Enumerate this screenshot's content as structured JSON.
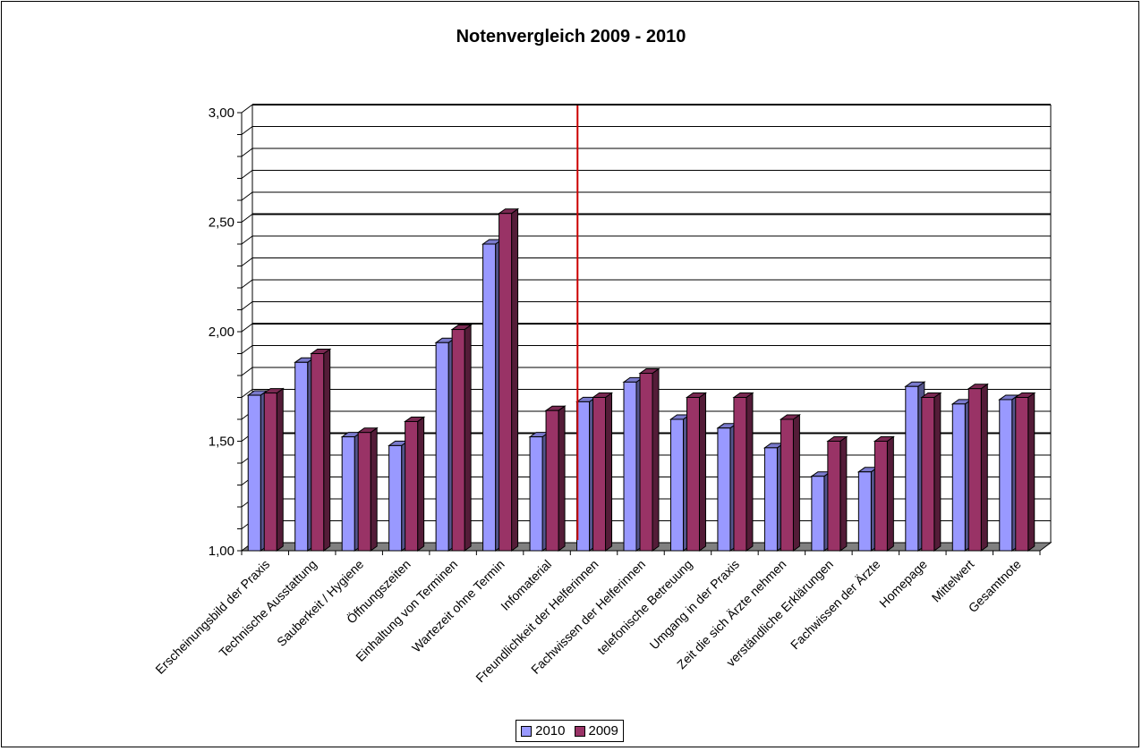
{
  "chart_data": {
    "type": "bar",
    "title": "Notenvergleich 2009 - 2010",
    "xlabel": "",
    "ylabel": "",
    "ylim": [
      1.0,
      3.0
    ],
    "yticks": [
      "1,00",
      "1,50",
      "2,00",
      "2,50",
      "3,00"
    ],
    "categories": [
      "Erscheinungsbild der Praxis",
      "Technische Ausstattung",
      "Sauberkeit / Hygiene",
      "Öffnungszeiten",
      "Einhaltung von Terminen",
      "Wartezeit ohne Termin",
      "Infomaterial",
      "Freundlichkeit der Helferinnen",
      "Fachwissen der Helferinnen",
      "telefonische Betreuung",
      "Umgang in der Praxis",
      "Zeit die sich Ärzte nehmen",
      "verständliche Erklärungen",
      "Fachwissen der Ärzte",
      "Homepage",
      "Mittelwert",
      "Gesamtnote"
    ],
    "series": [
      {
        "name": "2010",
        "color": "#9999ff",
        "values": [
          1.71,
          1.86,
          1.52,
          1.48,
          1.95,
          2.4,
          1.52,
          1.68,
          1.77,
          1.6,
          1.56,
          1.47,
          1.34,
          1.36,
          1.75,
          1.67,
          1.69
        ]
      },
      {
        "name": "2009",
        "color": "#993366",
        "values": [
          1.72,
          1.9,
          1.54,
          1.59,
          2.01,
          2.54,
          1.64,
          1.7,
          1.81,
          1.7,
          1.7,
          1.6,
          1.5,
          1.5,
          1.7,
          1.74,
          1.7
        ]
      }
    ],
    "grid": true,
    "major_gridlines": [
      1.5,
      2.0,
      2.5
    ],
    "reference_line": {
      "color": "#cc0000",
      "between_categories": [
        "Infomaterial",
        "Freundlichkeit der Helferinnen"
      ]
    },
    "legend": "bottom-center"
  }
}
